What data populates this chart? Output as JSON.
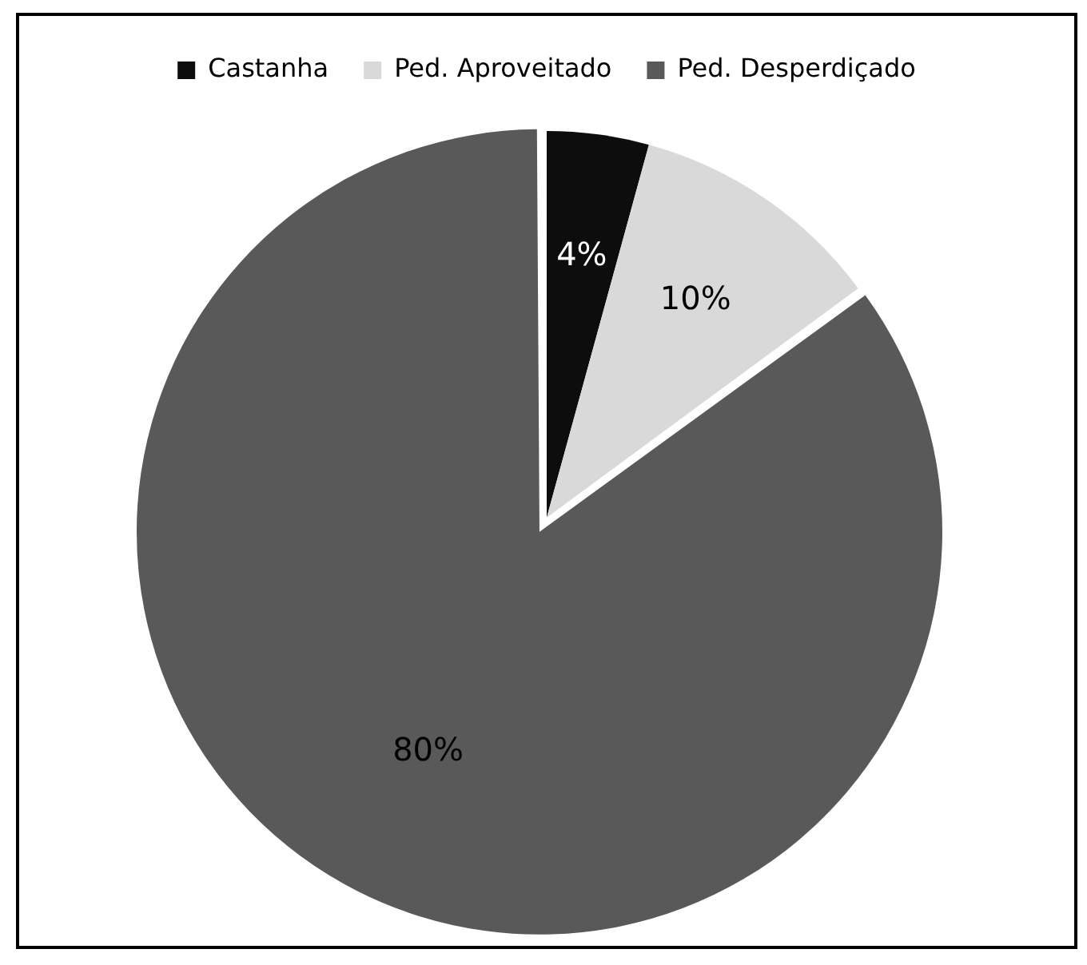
{
  "chart_data": {
    "type": "pie",
    "categories": [
      "Castanha",
      "Ped. Aproveitado",
      "Ped. Desperdiçado"
    ],
    "values": [
      4,
      10,
      80
    ],
    "colors": [
      "#0d0d0d",
      "#d9d9d9",
      "#595959"
    ],
    "value_labels": [
      "4%",
      "10%",
      "80%"
    ],
    "legend": "top"
  }
}
